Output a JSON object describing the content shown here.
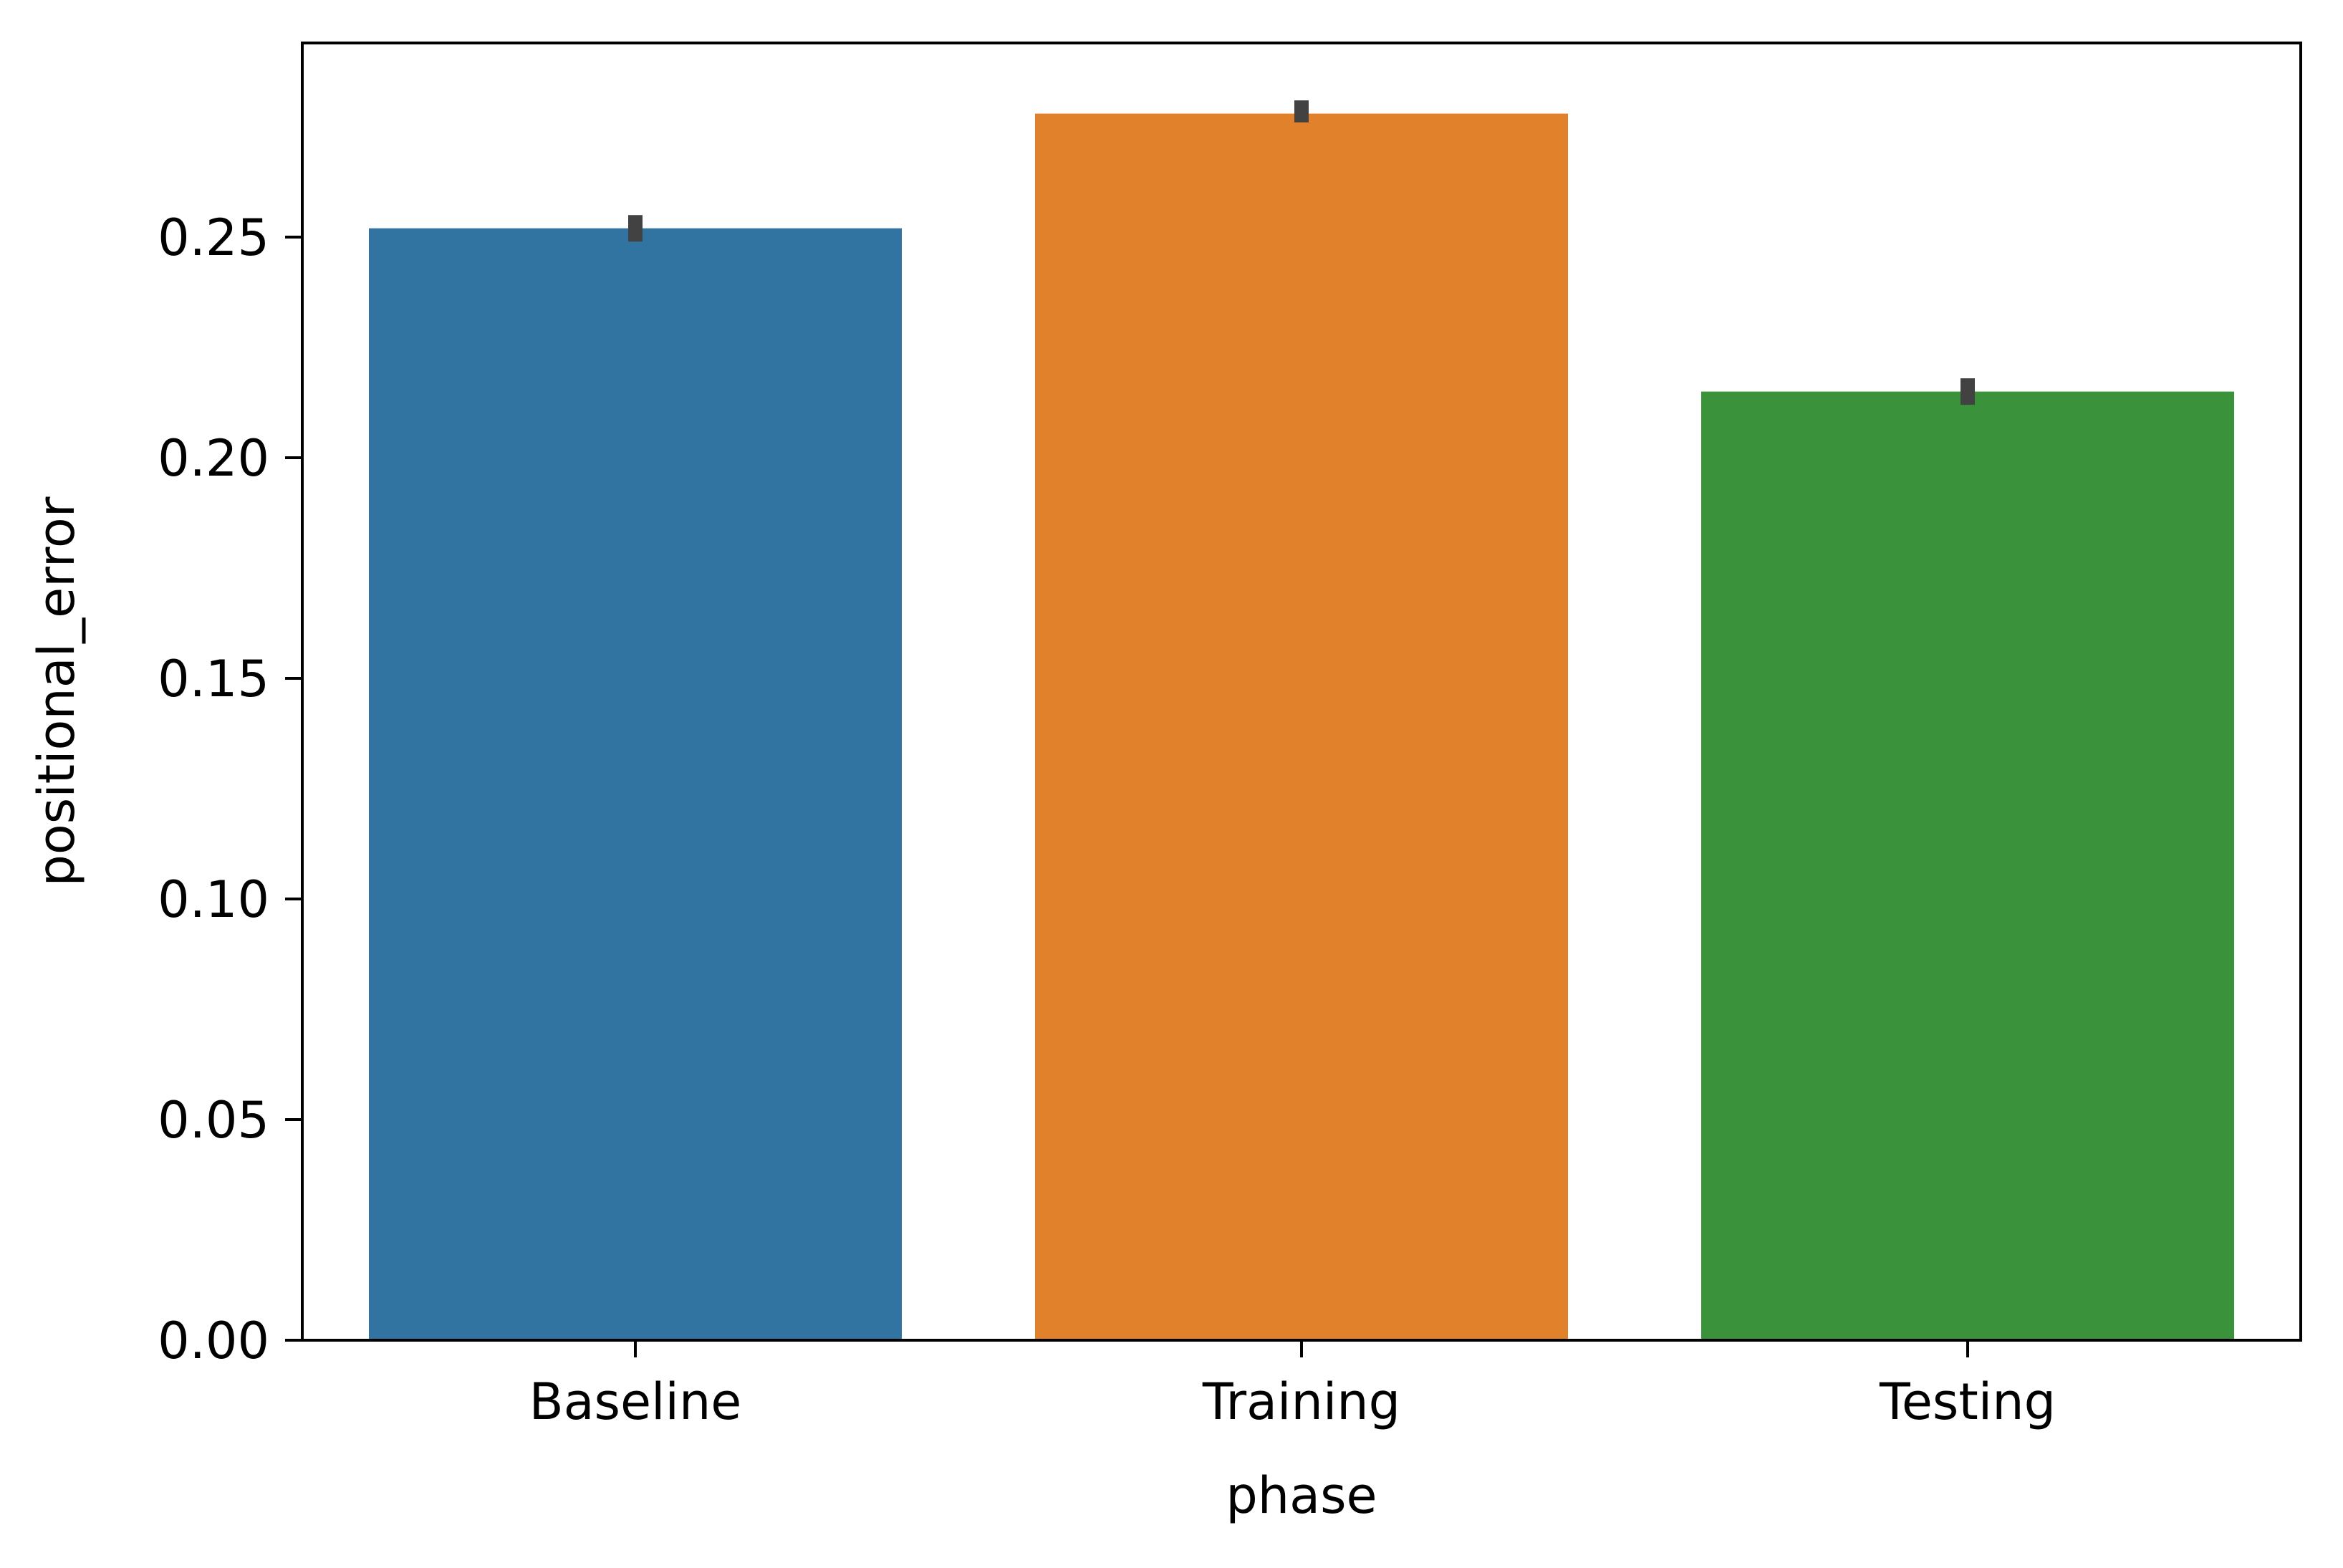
{
  "chart_data": {
    "type": "bar",
    "xlabel": "phase",
    "ylabel": "positional_error",
    "categories": [
      "Baseline",
      "Training",
      "Testing"
    ],
    "values": [
      0.252,
      0.278,
      0.215
    ],
    "error_bars": [
      {
        "low": 0.249,
        "high": 0.255
      },
      {
        "low": 0.276,
        "high": 0.281
      },
      {
        "low": 0.212,
        "high": 0.218
      }
    ],
    "colors": [
      "#3274a1",
      "#e1812c",
      "#3a923a"
    ],
    "error_bar_color": "#424242",
    "ylim": [
      0,
      0.294
    ],
    "yticks": [
      "0.00",
      "0.05",
      "0.10",
      "0.15",
      "0.20",
      "0.25"
    ],
    "grid": false,
    "legend": "none"
  }
}
